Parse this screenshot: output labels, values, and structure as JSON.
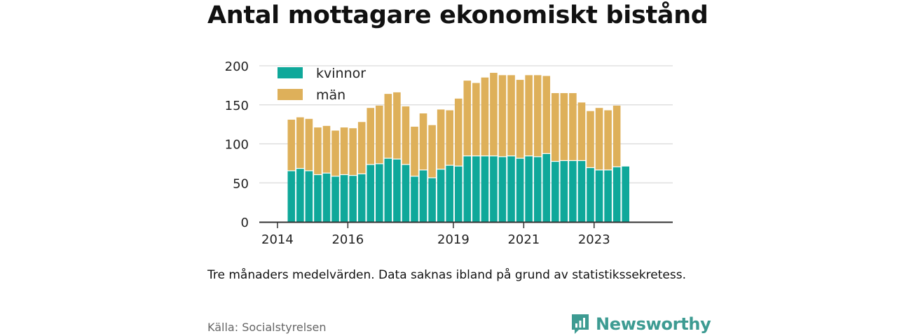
{
  "title": "Antal mottagare ekonomiskt bistånd",
  "note": "Tre månaders medelvärden. Data saknas ibland på grund av statistikssekretess.",
  "source": "Källa: Socialstyrelsen",
  "brand": {
    "name": "Newsworthy",
    "icon": "newsworthy-logo-icon"
  },
  "colors": {
    "kvinnor": "#0fa89a",
    "man": "#deb05a",
    "grid": "#d9d9d9",
    "axis": "#333333"
  },
  "chart_data": {
    "type": "bar",
    "stacked": true,
    "xlabel": "",
    "ylabel": "",
    "ylim": [
      0,
      200
    ],
    "yticks": [
      0,
      50,
      100,
      150,
      200
    ],
    "xtick_labels": [
      "2014",
      "2016",
      "2019",
      "2021",
      "2023"
    ],
    "legend": "top-left",
    "grid": true,
    "categories": [
      "2014 Q2",
      "2014 Q3",
      "2014 Q4",
      "2015 Q1",
      "2015 Q2",
      "2015 Q3",
      "2015 Q4",
      "2016 Q1",
      "2016 Q2",
      "2016 Q3",
      "2016 Q4",
      "2017 Q1",
      "2017 Q2",
      "2017 Q3",
      "2017 Q4",
      "2018 Q1",
      "2018 Q2",
      "2018 Q3",
      "2018 Q4",
      "2019 Q1",
      "2019 Q2",
      "2019 Q3",
      "2019 Q4",
      "2020 Q1",
      "2020 Q2",
      "2020 Q3",
      "2020 Q4",
      "2021 Q1",
      "2021 Q2",
      "2021 Q3",
      "2021 Q4",
      "2022 Q1",
      "2022 Q2",
      "2022 Q3",
      "2022 Q4",
      "2023 Q1",
      "2023 Q2",
      "2023 Q3",
      "2023 Q4"
    ],
    "series": [
      {
        "name": "kvinnor",
        "values": [
          65,
          68,
          65,
          60,
          62,
          58,
          60,
          59,
          61,
          73,
          74,
          81,
          80,
          73,
          58,
          66,
          56,
          67,
          72,
          71,
          84,
          84,
          84,
          84,
          83,
          84,
          81,
          84,
          83,
          87,
          77,
          78,
          78,
          78,
          69,
          66,
          66,
          70,
          71
        ]
      },
      {
        "name": "män",
        "values": [
          66,
          66,
          67,
          61,
          61,
          59,
          61,
          61,
          67,
          73,
          75,
          83,
          86,
          75,
          64,
          73,
          68,
          77,
          71,
          87,
          97,
          94,
          101,
          107,
          105,
          104,
          101,
          104,
          105,
          100,
          88,
          87,
          87,
          75,
          73,
          80,
          77,
          79,
          0
        ]
      }
    ]
  }
}
